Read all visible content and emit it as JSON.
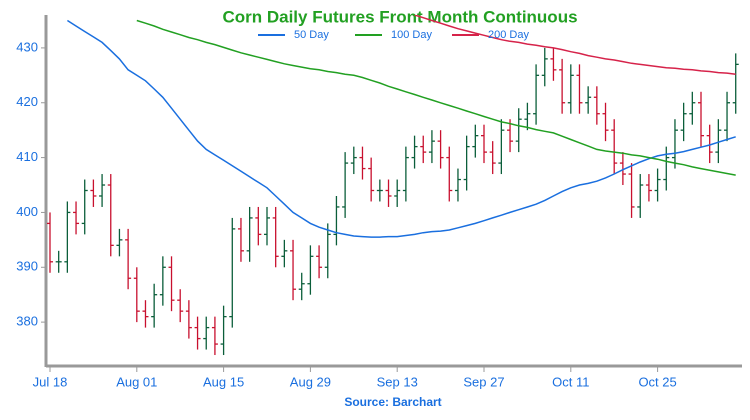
{
  "chart_data": {
    "type": "ohlc",
    "title": "Corn Daily Futures Front Month Continuous",
    "source": "Source: Barchart",
    "categories": [
      "Jul 18",
      null,
      null,
      null,
      null,
      null,
      null,
      null,
      null,
      null,
      "Aug 01",
      null,
      null,
      null,
      null,
      null,
      null,
      null,
      null,
      null,
      "Aug 15",
      null,
      null,
      null,
      null,
      null,
      null,
      null,
      null,
      null,
      "Aug 29",
      null,
      null,
      null,
      null,
      null,
      null,
      null,
      null,
      null,
      "Sep 13",
      null,
      null,
      null,
      null,
      null,
      null,
      null,
      null,
      null,
      "Sep 27",
      null,
      null,
      null,
      null,
      null,
      null,
      null,
      null,
      null,
      "Oct 11",
      null,
      null,
      null,
      null,
      null,
      null,
      null,
      null,
      null,
      "Oct 25",
      null,
      null,
      null,
      null,
      null,
      null,
      null,
      null,
      null
    ],
    "open": [
      398,
      391,
      391,
      400,
      398,
      404,
      403,
      405,
      394,
      395,
      388,
      382,
      381,
      385,
      390,
      384,
      382,
      379,
      377,
      379,
      376,
      381,
      397,
      393,
      399,
      396,
      399,
      392,
      393,
      386,
      387,
      392,
      390,
      396,
      401,
      409,
      410,
      408,
      404,
      404,
      403,
      404,
      410,
      412,
      411,
      413,
      410,
      404,
      406,
      412,
      414,
      411,
      409,
      415,
      413,
      417,
      418,
      425,
      428,
      426,
      420,
      425,
      420,
      421,
      418,
      415,
      409,
      407,
      401,
      405,
      404,
      406,
      410,
      415,
      418,
      420,
      414,
      411,
      415,
      420
    ],
    "high": [
      400,
      393,
      402,
      402,
      406,
      406,
      407,
      407,
      397,
      397,
      390,
      384,
      387,
      392,
      392,
      386,
      384,
      381,
      381,
      381,
      383,
      399,
      399,
      401,
      401,
      401,
      401,
      395,
      395,
      389,
      394,
      394,
      398,
      403,
      411,
      412,
      412,
      410,
      406,
      406,
      406,
      412,
      414,
      414,
      415,
      415,
      412,
      408,
      414,
      416,
      416,
      413,
      417,
      417,
      419,
      420,
      427,
      430,
      430,
      428,
      427,
      427,
      423,
      423,
      420,
      417,
      411,
      409,
      407,
      407,
      408,
      412,
      417,
      420,
      422,
      422,
      416,
      417,
      422,
      429
    ],
    "low": [
      389,
      389,
      389,
      396,
      396,
      401,
      401,
      392,
      392,
      386,
      380,
      379,
      379,
      383,
      382,
      380,
      377,
      375,
      375,
      374,
      374,
      379,
      391,
      391,
      394,
      394,
      390,
      390,
      384,
      384,
      385,
      388,
      388,
      394,
      399,
      407,
      406,
      402,
      402,
      401,
      401,
      402,
      408,
      409,
      409,
      408,
      402,
      402,
      404,
      410,
      409,
      407,
      407,
      411,
      411,
      415,
      416,
      423,
      424,
      418,
      418,
      418,
      418,
      416,
      413,
      407,
      405,
      399,
      399,
      402,
      402,
      404,
      408,
      413,
      416,
      412,
      409,
      409,
      413,
      418
    ],
    "close": [
      391,
      391,
      400,
      398,
      404,
      403,
      405,
      394,
      395,
      388,
      382,
      381,
      385,
      390,
      384,
      382,
      379,
      377,
      379,
      376,
      381,
      397,
      393,
      399,
      396,
      399,
      392,
      393,
      386,
      387,
      392,
      390,
      396,
      401,
      409,
      410,
      408,
      404,
      404,
      403,
      404,
      410,
      412,
      411,
      413,
      410,
      404,
      406,
      412,
      414,
      411,
      409,
      415,
      413,
      417,
      418,
      425,
      428,
      426,
      420,
      425,
      420,
      421,
      418,
      415,
      409,
      407,
      401,
      405,
      404,
      406,
      410,
      415,
      418,
      420,
      414,
      411,
      415,
      420,
      427
    ],
    "up_color": "#0b5e3a",
    "down_color": "#c8102e",
    "series": [
      {
        "name": "50 Day",
        "color": "#1a6fdf",
        "values": [
          null,
          null,
          435,
          434,
          433,
          432,
          431,
          429.5,
          428,
          426,
          425,
          424,
          422.5,
          421,
          419,
          417,
          415,
          413,
          411.5,
          410.5,
          409.5,
          408.5,
          407.5,
          406.5,
          405.5,
          404.5,
          403,
          401.5,
          400,
          399,
          398,
          397.3,
          396.8,
          396.3,
          396,
          395.7,
          395.6,
          395.5,
          395.5,
          395.6,
          395.6,
          395.8,
          396,
          396.3,
          396.5,
          396.6,
          396.8,
          397.2,
          397.6,
          398,
          398.5,
          399,
          399.5,
          400,
          400.5,
          401,
          401.5,
          402.2,
          403,
          403.8,
          404.5,
          405,
          405.3,
          405.7,
          406.3,
          407,
          407.8,
          408.5,
          409.2,
          409.8,
          410.3,
          410.6,
          410.8,
          411.1,
          411.5,
          411.9,
          412.3,
          412.8,
          413.3,
          413.8
        ]
      },
      {
        "name": "100 Day",
        "color": "#22a022",
        "values": [
          null,
          null,
          null,
          null,
          null,
          null,
          null,
          null,
          null,
          null,
          435,
          434.5,
          434,
          433.4,
          432.9,
          432.4,
          431.9,
          431.5,
          431,
          430.6,
          430.1,
          429.6,
          429.1,
          428.7,
          428.3,
          427.9,
          427.5,
          427.1,
          426.8,
          426.5,
          426.2,
          426,
          425.7,
          425.5,
          425.2,
          425,
          424.6,
          424.1,
          423.6,
          423,
          422.5,
          422,
          421.5,
          421,
          420.5,
          420,
          419.5,
          419,
          418.5,
          418,
          417.5,
          417,
          416.5,
          416.2,
          415.8,
          415.5,
          415.1,
          414.8,
          414.5,
          413.9,
          413.3,
          412.7,
          412.1,
          411.5,
          411.2,
          411,
          410.8,
          410.5,
          410.3,
          410,
          409.7,
          409.3,
          409,
          408.7,
          408.3,
          408,
          407.7,
          407.4,
          407.1,
          406.8
        ]
      },
      {
        "name": "200 Day",
        "color": "#d6234a",
        "values": [
          null,
          null,
          null,
          null,
          null,
          null,
          null,
          null,
          null,
          null,
          null,
          null,
          null,
          null,
          null,
          null,
          null,
          null,
          null,
          null,
          null,
          null,
          null,
          null,
          null,
          null,
          null,
          null,
          null,
          null,
          null,
          null,
          null,
          null,
          null,
          null,
          null,
          null,
          null,
          null,
          null,
          null,
          436,
          435.5,
          435,
          434.5,
          434,
          433.5,
          433.1,
          432.7,
          432.3,
          431.9,
          431.5,
          431.2,
          431,
          430.7,
          430.5,
          430.2,
          430,
          429.7,
          429.3,
          429,
          428.6,
          428.3,
          428,
          427.8,
          427.5,
          427.2,
          427,
          426.8,
          426.6,
          426.4,
          426.3,
          426.1,
          426,
          425.8,
          425.7,
          425.5,
          425.4,
          425.2
        ]
      }
    ],
    "ylim": [
      372,
      436
    ],
    "yticks": [
      380,
      390,
      400,
      410,
      420,
      430
    ]
  }
}
